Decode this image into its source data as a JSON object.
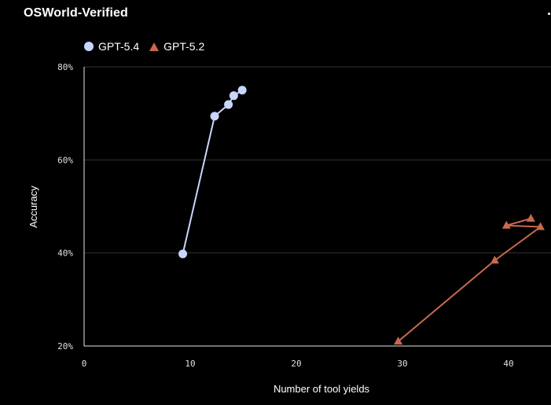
{
  "title": "OSWorld-Verified",
  "colors": {
    "background": "#000000",
    "grid": "#333333",
    "axis": "#e6e6e6",
    "gpt54": "#c9d6fb",
    "gpt52": "#c8694d"
  },
  "legend": [
    {
      "label": "GPT-5.4",
      "marker": "circle",
      "color": "#c9d6fb"
    },
    {
      "label": "GPT-5.2",
      "marker": "triangle",
      "color": "#c8694d"
    }
  ],
  "chart_data": {
    "type": "line",
    "title": "OSWorld-Verified",
    "xlabel": "Number of tool yields",
    "ylabel": "Accuracy",
    "xlim": [
      0,
      44
    ],
    "ylim": [
      20,
      80
    ],
    "xticks": [
      0,
      10,
      20,
      30,
      40
    ],
    "xtick_labels": [
      "0",
      "10",
      "20",
      "30",
      "40"
    ],
    "yticks": [
      20,
      40,
      60,
      80
    ],
    "ytick_labels": [
      "20%",
      "40%",
      "60%",
      "80%"
    ],
    "grid": "horizontal",
    "legend_position": "top-left",
    "series": [
      {
        "name": "GPT-5.4",
        "marker": "circle",
        "color": "#c9d6fb",
        "points": [
          {
            "x": 9.3,
            "y": 39.8
          },
          {
            "x": 12.3,
            "y": 69.4
          },
          {
            "x": 13.6,
            "y": 71.9
          },
          {
            "x": 14.1,
            "y": 73.8
          },
          {
            "x": 14.9,
            "y": 75.0
          }
        ]
      },
      {
        "name": "GPT-5.2",
        "marker": "triangle",
        "color": "#c8694d",
        "points": [
          {
            "x": 29.6,
            "y": 21.0
          },
          {
            "x": 38.7,
            "y": 38.4
          },
          {
            "x": 43.0,
            "y": 45.6
          },
          {
            "x": 39.8,
            "y": 45.9
          },
          {
            "x": 42.1,
            "y": 47.4
          }
        ]
      }
    ]
  }
}
